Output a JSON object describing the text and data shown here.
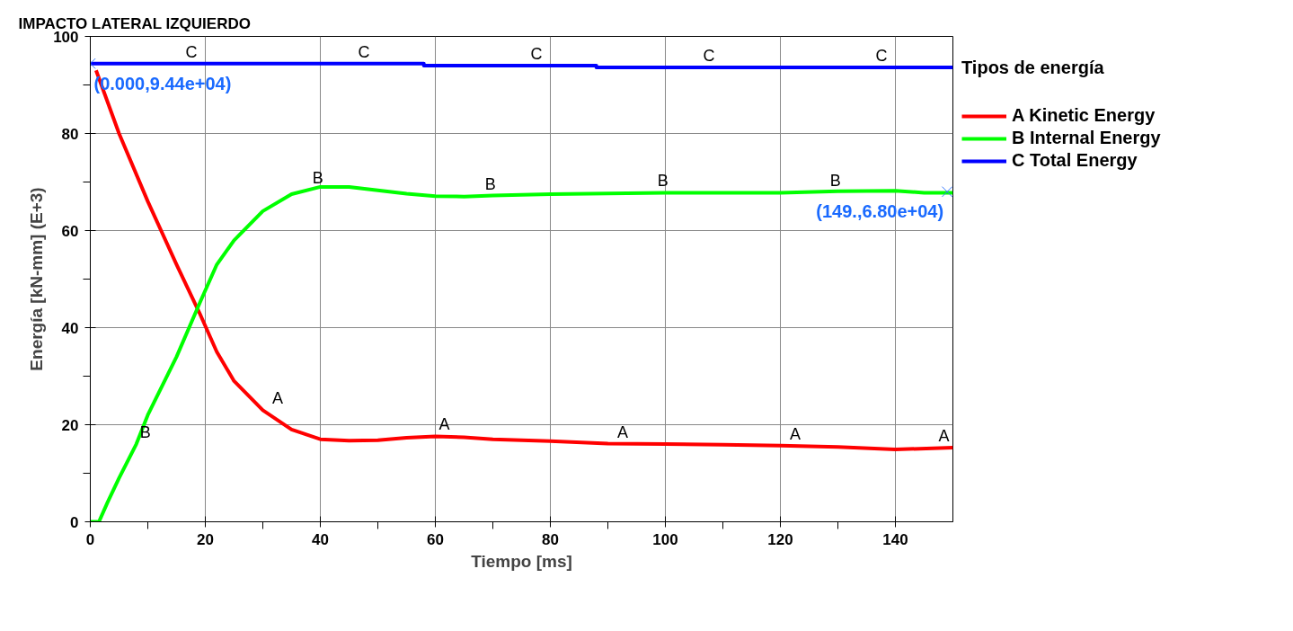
{
  "chart_data": {
    "type": "line",
    "title": "IMPACTO LATERAL IZQUIERDO",
    "xlabel": "Tiempo [ms]",
    "ylabel": "Energía [kN-mm] (E+3)",
    "legend_title": "Tipos de energía",
    "legend": "right",
    "grid": true,
    "line_style": "solid",
    "marker": "none",
    "xlim": [
      0,
      150
    ],
    "ylim": [
      0,
      100
    ],
    "xticks": [
      0,
      {
        "value": 10,
        "label": null
      },
      20,
      {
        "value": 30,
        "label": null
      },
      40,
      {
        "value": 50,
        "label": null
      },
      60,
      {
        "value": 70,
        "label": null
      },
      80,
      {
        "value": 90,
        "label": null
      },
      100,
      {
        "value": 110,
        "label": null
      },
      120,
      {
        "value": 130,
        "label": null
      },
      140
    ],
    "yticks": [
      0,
      {
        "value": 10,
        "label": null
      },
      20,
      {
        "value": 30,
        "label": null
      },
      40,
      {
        "value": 50,
        "label": null
      },
      60,
      {
        "value": 70,
        "label": null
      },
      80,
      {
        "value": 90,
        "label": null
      },
      100
    ],
    "series": [
      {
        "name": "A Kinetic Energy",
        "color": "#ff0000",
        "x": [
          1,
          5,
          10,
          15,
          19,
          22,
          25,
          30,
          35,
          40,
          45,
          50,
          55,
          60,
          65,
          70,
          80,
          90,
          100,
          110,
          120,
          130,
          140,
          150
        ],
        "values": [
          93,
          80,
          66,
          53,
          43,
          35,
          29,
          23,
          19,
          17,
          16.7,
          16.8,
          17.3,
          17.6,
          17.4,
          17.0,
          16.6,
          16.1,
          16.0,
          15.9,
          15.7,
          15.4,
          14.9,
          15.3
        ]
      },
      {
        "name": "B Internal Energy",
        "color": "#00ff00",
        "x": [
          0,
          1.5,
          3,
          5,
          8,
          10,
          15,
          19,
          22,
          25,
          30,
          35,
          40,
          45,
          50,
          55,
          60,
          65,
          70,
          80,
          100,
          120,
          130,
          140,
          145,
          150
        ],
        "values": [
          0,
          0,
          4,
          9,
          16,
          22,
          34,
          45,
          53,
          58,
          64,
          67.5,
          69,
          69,
          68.3,
          67.6,
          67.1,
          67,
          67.2,
          67.5,
          67.8,
          67.8,
          68.1,
          68.2,
          67.8,
          67.8
        ]
      },
      {
        "name": "C Total Energy",
        "color": "#0000ff",
        "x": [
          0,
          58,
          58,
          88,
          88,
          150
        ],
        "values": [
          94.4,
          94.4,
          94.0,
          94.0,
          93.6,
          93.6
        ]
      }
    ],
    "annotations": [
      {
        "text": "(0.000,9.44e+04)",
        "x": 0,
        "y": 94.4
      },
      {
        "text": "(149.,6.80e+04)",
        "x": 149,
        "y": 68
      },
      {
        "text": "A",
        "x": 31,
        "y": 23
      },
      {
        "text": "A",
        "x": 60,
        "y": 17.6
      },
      {
        "text": "A",
        "x": 91,
        "y": 16.1
      },
      {
        "text": "A",
        "x": 121,
        "y": 15.7
      },
      {
        "text": "A",
        "x": 150,
        "y": 15.3
      },
      {
        "text": "B",
        "x": 8,
        "y": 16
      },
      {
        "text": "B",
        "x": 38,
        "y": 68.5
      },
      {
        "text": "B",
        "x": 68,
        "y": 67.1
      },
      {
        "text": "B",
        "x": 98,
        "y": 67.8
      },
      {
        "text": "B",
        "x": 128,
        "y": 67.9
      },
      {
        "text": "C",
        "x": 16,
        "y": 94.4
      },
      {
        "text": "C",
        "x": 46,
        "y": 94.4
      },
      {
        "text": "C",
        "x": 76,
        "y": 94.0
      },
      {
        "text": "C",
        "x": 106,
        "y": 93.6
      },
      {
        "text": "C",
        "x": 136,
        "y": 93.6
      }
    ]
  }
}
